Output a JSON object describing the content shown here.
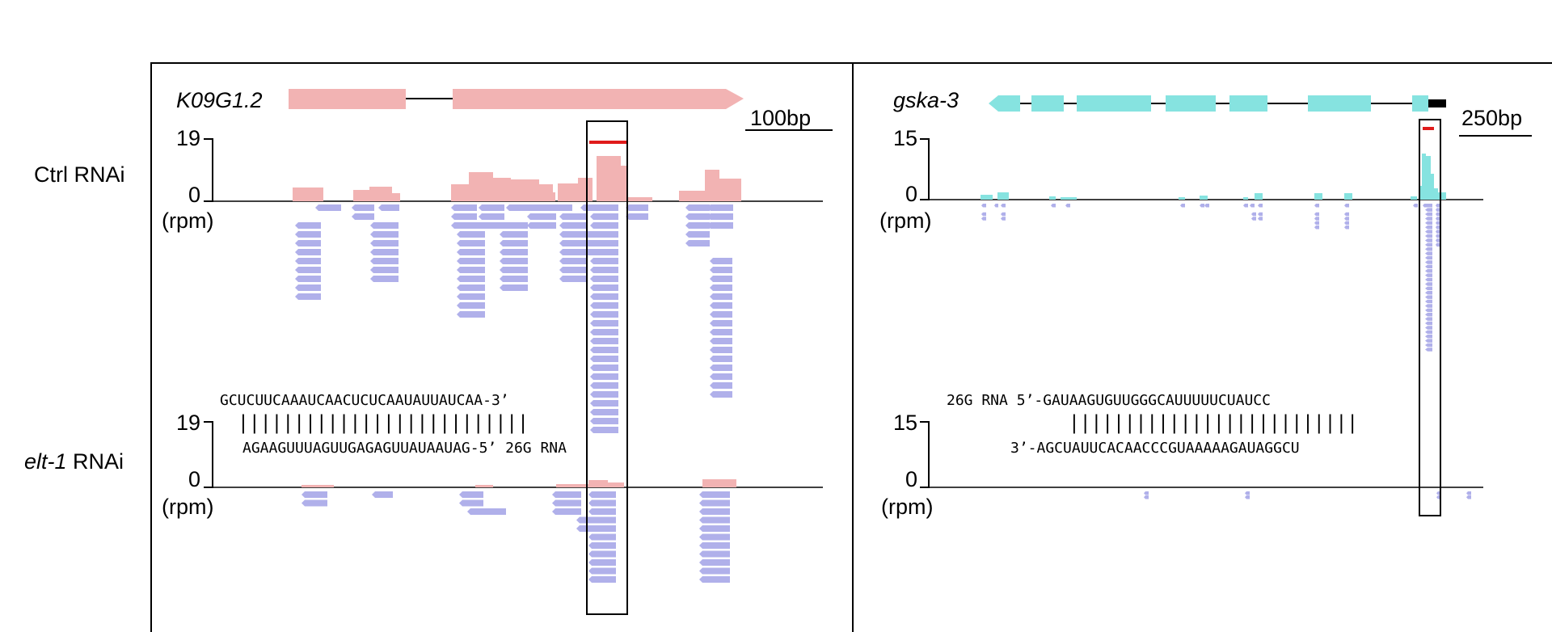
{
  "rows": {
    "ctrl": {
      "prefix": "",
      "name": "Ctrl RNAi"
    },
    "elt1": {
      "prefix": "elt-1",
      "name": " RNAi"
    }
  },
  "units": "(rpm)",
  "colors": {
    "coverage_left": "#f2b3b3",
    "gene_left": "#f2b3b3",
    "coverage_right": "#86e3e0",
    "gene_right": "#86e3e0",
    "reads": "#b0b0ea",
    "highlight": "#e01b1b",
    "utr": "#000000"
  },
  "left_panel": {
    "gene_name": "K09G1.2",
    "scale_bar": "100bp",
    "ctrl_ymax": "19",
    "ctrl_ymin": "0",
    "elt1_ymax": "19",
    "elt1_ymin": "0",
    "alignment": {
      "top": "GCUCUUCAAAUCAACUCUCAAUAUUAUCAA-3’",
      "bars": "||||||||||||||||||||||||||",
      "bottom": "AGAAGUUUAGUUGAGAGUUAUAAUAG-5’ 26G RNA"
    }
  },
  "right_panel": {
    "gene_name": "gska-3",
    "scale_bar": "250bp",
    "ctrl_ymax": "15",
    "ctrl_ymin": "0",
    "elt1_ymax": "15",
    "elt1_ymin": "0",
    "alignment": {
      "top": "26G RNA 5’-GAUAAGUGUUGGGCAUUUUUCUAUCC",
      "bars": "||||||||||||||||||||||||||",
      "bottom": "3’-AGCUAUUCACAACCCGUAAAAAGAUAGGCU"
    }
  }
}
